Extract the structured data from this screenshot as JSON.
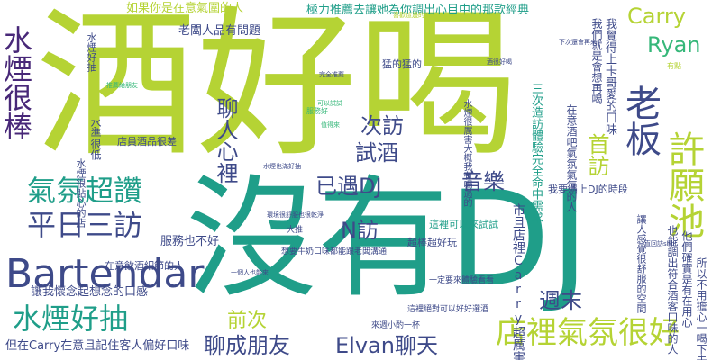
{
  "colors": {
    "lime": "#b5d334",
    "teal": "#1f9e89",
    "navy": "#3e4a89",
    "purple": "#482878",
    "green": "#35b779",
    "background": "#ffffff"
  },
  "words": {
    "w1": "酒好喝",
    "w2": "沒有DJ",
    "w3": "Bartendar",
    "w4": "水煙很棒",
    "w5": "氣氛超讚",
    "w6": "平日三訪",
    "w7": "水煙好抽",
    "w8": "店裡氣氛很好",
    "w9": "老板",
    "w10": "許願池",
    "w11": "Carry",
    "w12": "Ryan",
    "w13": "音樂",
    "w14": "Elvan聊天",
    "w15": "聊成朋友",
    "w16": "已遇DJ",
    "w17": "週末",
    "w18": "N訪",
    "w19": "首訪",
    "w20": "試酒",
    "w21": "次訪",
    "w22": "聊人心裡",
    "w23": "前次",
    "w24": "老闆人品有問題",
    "w25": "極力推薦去讓她為你調出心目中的那款經典",
    "w26": "如果你是在意氣圍的人",
    "w27": "服務也不好",
    "w28": "讓我懷念起想念的口感",
    "w29": "但在Carry在意且記住客人偏好口味",
    "w30": "在意飲酒細節的人",
    "w31": "我要遇上DJ的時段",
    "w32": "這裡可以來試試",
    "w33": "店員酒品很差",
    "w34": "猛的猛的",
    "w35": "超棒超好玩",
    "w36": "一定要來體驗看看",
    "w37": "來週小酌一杯",
    "w38": "這裡絕對可以好好選酒",
    "w39": "也能調出符合酒客口味的人",
    "w40": "我覺得上卡哥愛的口味",
    "w41": "水煙好抽",
    "w42": "我們就是會想再喝",
    "w43": "水煙很厲害大概我有喝過的",
    "w44": "市且店裡Carry超厲害的",
    "w45": "所以不用擔心一喝下去",
    "w46": "他們確實是有在用心",
    "w47": "讓人感覺很舒服的空間",
    "w48": "三次造訪體驗完全命中需求",
    "w49": "水準很低",
    "w50": "水煙很貼心的店",
    "w51": "在意酒吧氣氛氣氛的人",
    "w52": "服務好",
    "w53": "大推",
    "w54": "有點",
    "w55": "一直回訪shot",
    "w56": "想要牛奶口味都能跟老闆溝通",
    "w57": "喜歡這邊的Bartender的服務",
    "w58": "完全推薦",
    "w59": "環境很舒服也很乾淨",
    "w60": "水煙也滿好抽",
    "w61": "推薦給朋友",
    "w62": "可以試試",
    "w63": "值得來",
    "w64": "酒很好喝",
    "w65": "下次還會再來",
    "w66": "一個人也能來"
  }
}
